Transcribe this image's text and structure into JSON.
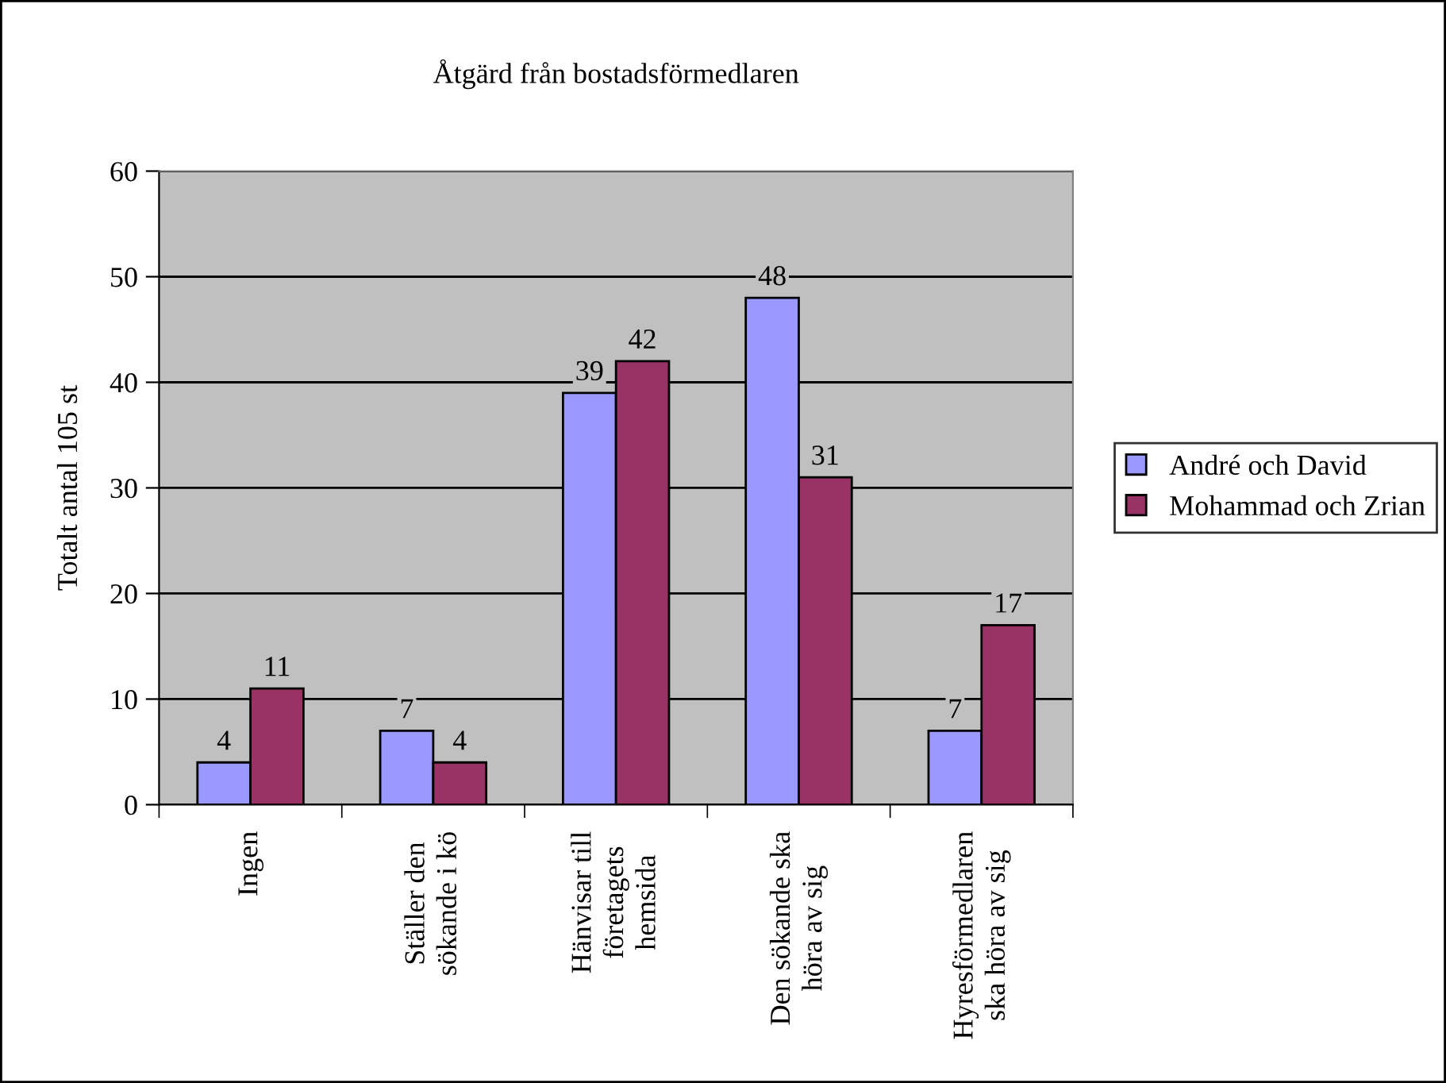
{
  "chart_data": {
    "type": "bar",
    "title": "Åtgärd från bostadsförmedlaren",
    "ylabel": "Totalt antal 105 st",
    "categories": [
      "Ingen",
      "Ställer den\nsökande i kö",
      "Hänvisar till\nföretagets\nhemsida",
      "Den sökande ska\nhöra av sig",
      "Hyresförmedlaren\nska höra av sig"
    ],
    "series": [
      {
        "name": "André och David",
        "color": "#9999ff",
        "values": [
          4,
          7,
          39,
          48,
          7
        ]
      },
      {
        "name": "Mohammad och Zrian",
        "color": "#993366",
        "values": [
          11,
          4,
          42,
          31,
          17
        ]
      }
    ],
    "ylim": [
      0,
      60
    ],
    "yticks": [
      0,
      10,
      20,
      30,
      40,
      50,
      60
    ],
    "grid": "y",
    "legend": "right",
    "data_labels": true
  }
}
